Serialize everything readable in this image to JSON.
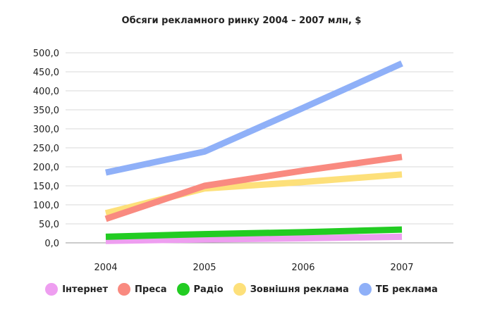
{
  "chart_data": {
    "type": "line",
    "title": "Обсяги рекламного ринку 2004 – 2007 млн, $",
    "xlabel": "",
    "ylabel": "",
    "categories": [
      "2004",
      "2005",
      "2006",
      "2007"
    ],
    "ylim": [
      0,
      500
    ],
    "yticks": [
      "0,0",
      "50,0",
      "100,0",
      "150,0",
      "200,0",
      "250,0",
      "300,0",
      "350,0",
      "400,0",
      "450,0",
      "500,0"
    ],
    "grid": true,
    "legend_position": "bottom",
    "series": [
      {
        "name": "Інтернет",
        "color": "#ee9ef0",
        "values": [
          5,
          9,
          12,
          16
        ]
      },
      {
        "name": "Преса",
        "color": "#f98a80",
        "values": [
          63,
          150,
          190,
          226
        ]
      },
      {
        "name": "Радіо",
        "color": "#22cc22",
        "values": [
          16,
          23,
          28,
          35
        ]
      },
      {
        "name": "Зовнішня реклама",
        "color": "#fde07a",
        "values": [
          78,
          143,
          160,
          180
        ]
      },
      {
        "name": "ТБ реклама",
        "color": "#8fb0f8",
        "values": [
          185,
          240,
          355,
          472
        ]
      }
    ]
  }
}
